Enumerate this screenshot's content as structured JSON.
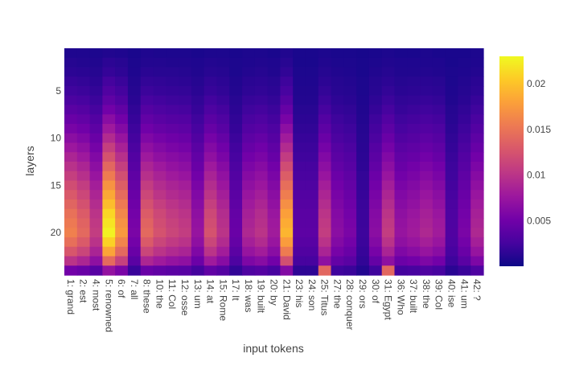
{
  "chart_data": {
    "type": "heatmap",
    "title": "",
    "xlabel": "input tokens",
    "ylabel": "layers",
    "x_categories": [
      "1: grand",
      "2: est",
      "4: most",
      "5: renowned",
      "6: of",
      "7: all",
      "8: these",
      "10: the",
      "11: Col",
      "12: osse",
      "13: um",
      "14: at",
      "15: Rome",
      "17: It",
      "18: was",
      "19: built",
      "20: by",
      "21: David",
      "23: his",
      "24: son",
      "25: Titus",
      "27: the",
      "28: conquer",
      "29: ors",
      "30: of",
      "31: Egypt",
      "36: Who",
      "37: built",
      "38: the",
      "39: Col",
      "40: ise",
      "41: um",
      "42: ?"
    ],
    "y_range": [
      1,
      24
    ],
    "y_ticks": [
      5,
      10,
      15,
      20
    ],
    "colorbar": {
      "min": 0,
      "max": 0.023,
      "ticks": [
        0.005,
        0.01,
        0.015,
        0.02
      ],
      "tick_labels": [
        "0.005",
        "0.01",
        "0.015",
        "0.02"
      ]
    },
    "colorscale": "plasma",
    "colorscale_stops": [
      "#0d0887",
      "#46039f",
      "#7201a8",
      "#9c179e",
      "#bd3786",
      "#d8576b",
      "#ed7953",
      "#fb9f3a",
      "#fdca26",
      "#f0f921"
    ],
    "column_profiles": [
      0.45,
      0.4,
      0.3,
      0.65,
      0.5,
      0.15,
      0.4,
      0.35,
      0.32,
      0.3,
      0.2,
      0.35,
      0.28,
      0.12,
      0.25,
      0.28,
      0.22,
      0.55,
      0.1,
      0.1,
      0.3,
      0.18,
      0.15,
      0.05,
      0.18,
      0.3,
      0.2,
      0.22,
      0.25,
      0.22,
      0.08,
      0.15,
      0.25
    ],
    "values": []
  }
}
